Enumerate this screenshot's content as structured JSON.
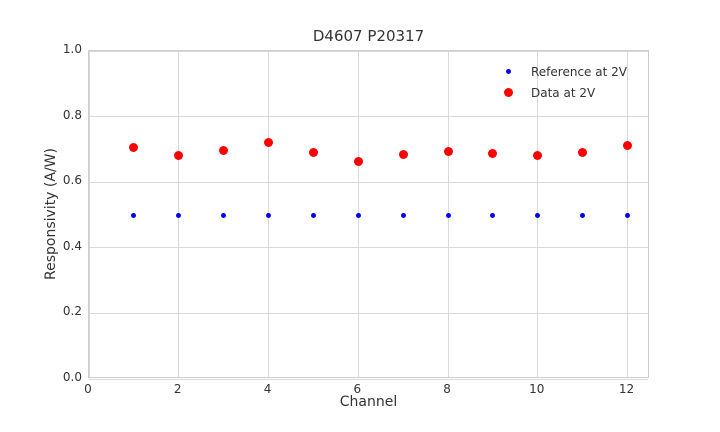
{
  "chart_data": {
    "type": "scatter",
    "title": "D4607 P20317",
    "xlabel": "Channel",
    "ylabel": "Responsivity (A/W)",
    "xlim": [
      0,
      12.5
    ],
    "ylim": [
      0.0,
      1.0
    ],
    "xticks": [
      0,
      2,
      4,
      6,
      8,
      10,
      12
    ],
    "yticks": [
      0.0,
      0.2,
      0.4,
      0.6,
      0.8,
      1.0
    ],
    "grid": true,
    "legend_position": "upper right",
    "legend_frame": false,
    "x": [
      1,
      2,
      3,
      4,
      5,
      6,
      7,
      8,
      9,
      10,
      11,
      12
    ],
    "series": [
      {
        "name": "Reference at 2V",
        "color": "#0000ff",
        "marker_px": 5,
        "values": [
          0.5,
          0.5,
          0.5,
          0.5,
          0.5,
          0.5,
          0.5,
          0.5,
          0.5,
          0.5,
          0.5,
          0.5
        ]
      },
      {
        "name": "Data at 2V",
        "color": "#ff0000",
        "marker_px": 9,
        "values": [
          0.705,
          0.681,
          0.697,
          0.72,
          0.69,
          0.664,
          0.683,
          0.693,
          0.686,
          0.682,
          0.69,
          0.712
        ]
      }
    ],
    "colors": {
      "grid": "#d9d9d9",
      "spine": "#cccccc",
      "text": "#333333",
      "background": "#ffffff"
    }
  }
}
